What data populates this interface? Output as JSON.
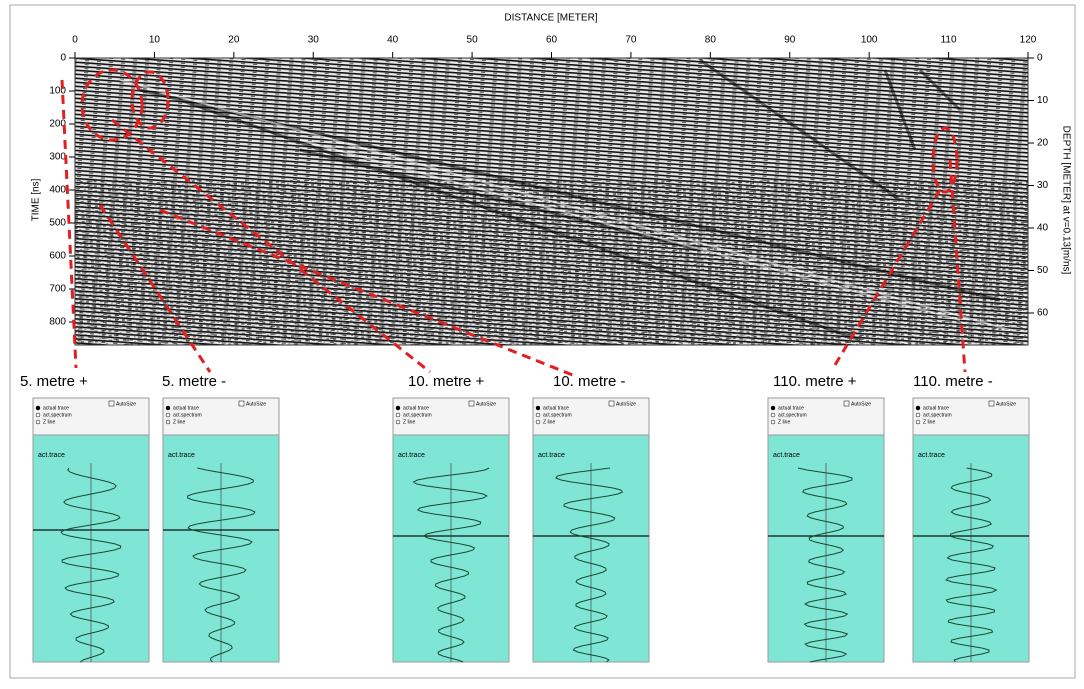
{
  "radargram": {
    "x_axis": {
      "title": "DISTANCE [METER]",
      "ticks": [
        "0",
        "10",
        "20",
        "30",
        "40",
        "50",
        "60",
        "70",
        "80",
        "90",
        "100",
        "110",
        "120"
      ]
    },
    "y_axis_left": {
      "title": "TIME [ns]",
      "ticks": [
        "0",
        "100",
        "200",
        "300",
        "400",
        "500",
        "600",
        "700",
        "800"
      ]
    },
    "y_axis_right": {
      "title": "DEPTH [METER] at v=0.13[m/ns]",
      "ticks": [
        "0",
        "10",
        "20",
        "30",
        "40",
        "50",
        "60"
      ]
    }
  },
  "panels": [
    {
      "label": "5. metre +",
      "options": [
        "actual trace",
        "act.spectrum",
        "Z line"
      ],
      "autosize": "AutoSize",
      "trace_title": "act.trace"
    },
    {
      "label": "5. metre -",
      "options": [
        "actual trace",
        "act.spectrum",
        "Z line"
      ],
      "autosize": "AutoSize",
      "trace_title": "act.trace"
    },
    {
      "label": "10. metre +",
      "options": [
        "actual trace",
        "act.spectrum",
        "Z line"
      ],
      "autosize": "AutoSize",
      "trace_title": "act.trace"
    },
    {
      "label": "10. metre -",
      "options": [
        "actual trace",
        "act.spectrum",
        "Z line"
      ],
      "autosize": "AutoSize",
      "trace_title": "act.trace"
    },
    {
      "label": "110. metre +",
      "options": [
        "actual trace",
        "act.spectrum",
        "Z line"
      ],
      "autosize": "AutoSize",
      "trace_title": "act.trace"
    },
    {
      "label": "110. metre -",
      "options": [
        "actual trace",
        "act.spectrum",
        "Z line"
      ],
      "autosize": "AutoSize",
      "trace_title": "act.trace"
    }
  ]
}
